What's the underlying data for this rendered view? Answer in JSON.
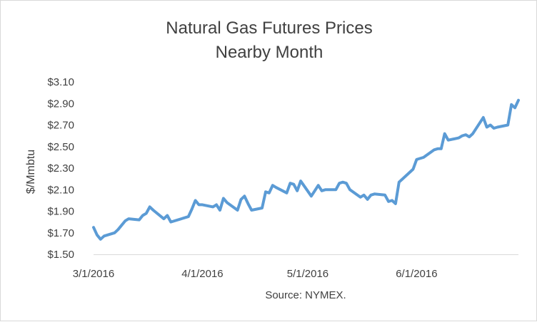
{
  "chart_data": {
    "type": "line",
    "title": "Natural Gas Futures Prices",
    "subtitle": "Nearby Month",
    "ylabel": "$/Mmbtu",
    "xlabel": "",
    "source": "Source: NYMEX.",
    "ylim": [
      1.5,
      3.1
    ],
    "yticks": [
      1.5,
      1.7,
      1.9,
      2.1,
      2.3,
      2.5,
      2.7,
      2.9,
      3.1
    ],
    "ytick_labels": [
      "$1.50",
      "$1.70",
      "$1.90",
      "$2.10",
      "$2.30",
      "$2.50",
      "$2.70",
      "$2.90",
      "$3.10"
    ],
    "xlim": [
      "2016-03-01",
      "2016-06-30"
    ],
    "xticks": [
      "2016-03-01",
      "2016-04-01",
      "2016-05-01",
      "2016-06-01"
    ],
    "xtick_labels": [
      "3/1/2016",
      "4/1/2016",
      "5/1/2016",
      "6/1/2016"
    ],
    "grid": false,
    "legend": "none",
    "line_color": "#5b9bd5",
    "series": [
      {
        "x": [
          "2016-03-01",
          "2016-03-02",
          "2016-03-03",
          "2016-03-04",
          "2016-03-07",
          "2016-03-08",
          "2016-03-09",
          "2016-03-10",
          "2016-03-11",
          "2016-03-14",
          "2016-03-15",
          "2016-03-16",
          "2016-03-17",
          "2016-03-18",
          "2016-03-21",
          "2016-03-22",
          "2016-03-23",
          "2016-03-24",
          "2016-03-28",
          "2016-03-29",
          "2016-03-30",
          "2016-03-31",
          "2016-04-01",
          "2016-04-04",
          "2016-04-05",
          "2016-04-06",
          "2016-04-07",
          "2016-04-08",
          "2016-04-11",
          "2016-04-12",
          "2016-04-13",
          "2016-04-14",
          "2016-04-15",
          "2016-04-18",
          "2016-04-19",
          "2016-04-20",
          "2016-04-21",
          "2016-04-22",
          "2016-04-25",
          "2016-04-26",
          "2016-04-27",
          "2016-04-28",
          "2016-04-29",
          "2016-05-02",
          "2016-05-03",
          "2016-05-04",
          "2016-05-05",
          "2016-05-06",
          "2016-05-09",
          "2016-05-10",
          "2016-05-11",
          "2016-05-12",
          "2016-05-13",
          "2016-05-16",
          "2016-05-17",
          "2016-05-18",
          "2016-05-19",
          "2016-05-20",
          "2016-05-23",
          "2016-05-24",
          "2016-05-25",
          "2016-05-26",
          "2016-05-27",
          "2016-05-31",
          "2016-06-01",
          "2016-06-02",
          "2016-06-03",
          "2016-06-06",
          "2016-06-07",
          "2016-06-08",
          "2016-06-09",
          "2016-06-10",
          "2016-06-13",
          "2016-06-14",
          "2016-06-15",
          "2016-06-16",
          "2016-06-17",
          "2016-06-20",
          "2016-06-21",
          "2016-06-22",
          "2016-06-23",
          "2016-06-24",
          "2016-06-27",
          "2016-06-28",
          "2016-06-29",
          "2016-06-30"
        ],
        "values": [
          1.75,
          1.68,
          1.64,
          1.67,
          1.7,
          1.73,
          1.77,
          1.81,
          1.83,
          1.82,
          1.86,
          1.88,
          1.94,
          1.91,
          1.83,
          1.86,
          1.8,
          1.81,
          1.85,
          1.92,
          2.0,
          1.96,
          1.96,
          1.94,
          1.96,
          1.91,
          2.02,
          1.98,
          1.91,
          2.01,
          2.04,
          1.97,
          1.91,
          1.93,
          2.08,
          2.07,
          2.14,
          2.12,
          2.07,
          2.16,
          2.15,
          2.09,
          2.18,
          2.04,
          2.09,
          2.14,
          2.09,
          2.1,
          2.1,
          2.16,
          2.17,
          2.16,
          2.1,
          2.03,
          2.05,
          2.01,
          2.05,
          2.06,
          2.05,
          1.99,
          2.0,
          1.97,
          2.17,
          2.29,
          2.38,
          2.39,
          2.4,
          2.47,
          2.48,
          2.48,
          2.62,
          2.56,
          2.58,
          2.6,
          2.61,
          2.59,
          2.62,
          2.77,
          2.68,
          2.7,
          2.67,
          2.68,
          2.7,
          2.89,
          2.86,
          2.93
        ]
      }
    ]
  }
}
